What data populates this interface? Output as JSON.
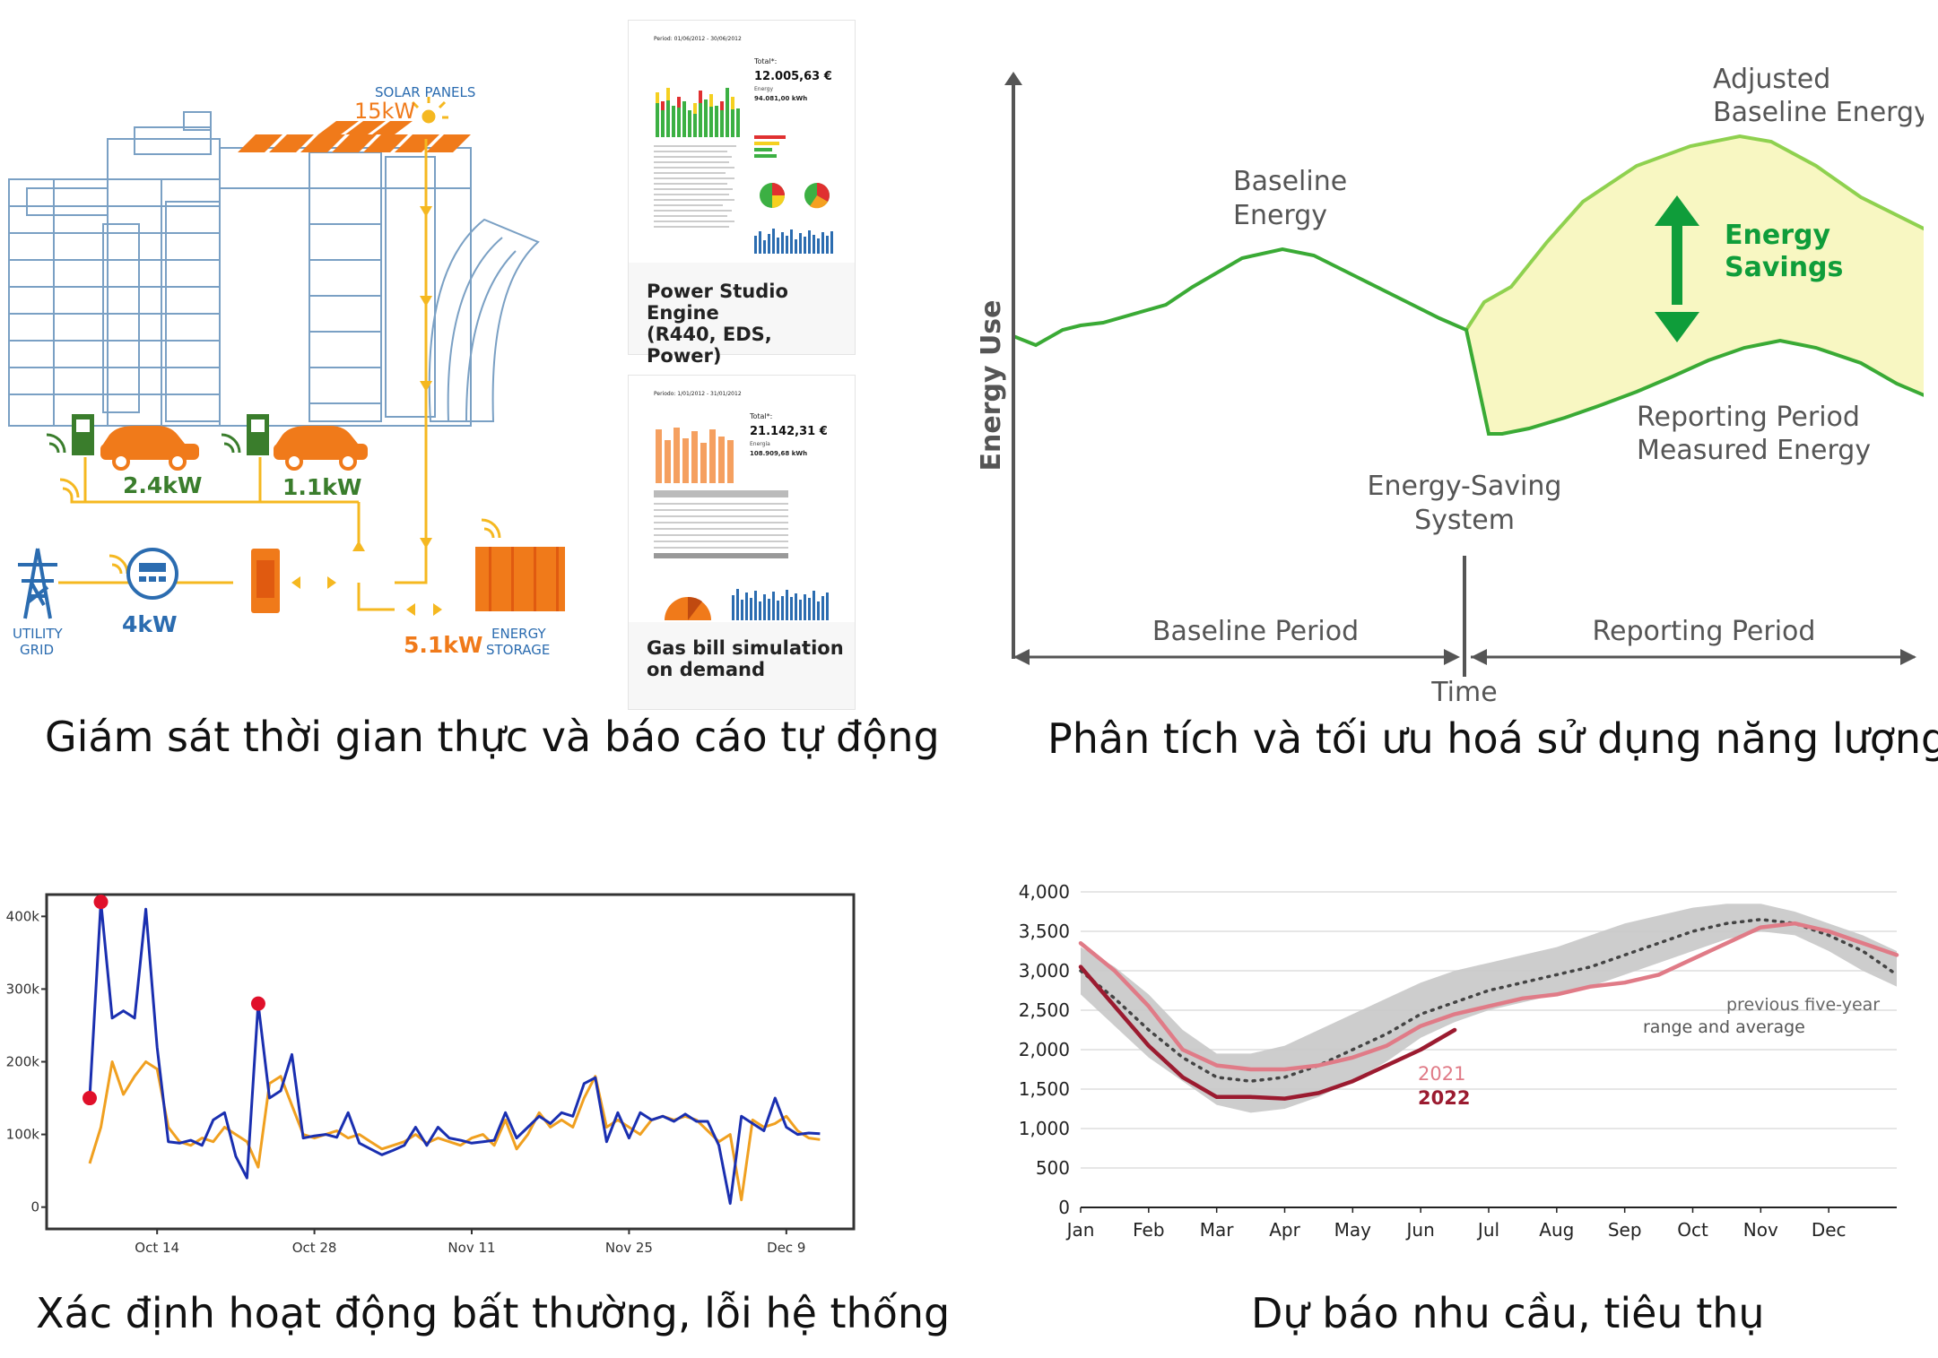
{
  "captions": {
    "top_left": "Giám sát thời gian thực và báo cáo tự động",
    "top_right": "Phân tích và tối ưu hoá sử dụng năng lượng",
    "bottom_left": "Xác định hoạt động bất thường, lỗi hệ thống",
    "bottom_right": "Dự báo nhu cầu, tiêu thụ"
  },
  "monitoring": {
    "solar_label": "SOLAR PANELS",
    "solar_value": "15kW",
    "ev1_value": "2.4kW",
    "ev2_value": "1.1kW",
    "grid_label_1": "UTILITY",
    "grid_label_2": "GRID",
    "meter_value": "4kW",
    "storage_value": "5.1kW",
    "storage_label_1": "ENERGY",
    "storage_label_2": "STORAGE",
    "colors": {
      "orange": "#f07a1a",
      "yellow": "#f5b820",
      "green": "#3a7d2c",
      "blue": "#2b6cb0",
      "line": "#7aa0c4"
    },
    "report1": {
      "period": "Period: 01/06/2012 - 30/06/2012",
      "total_label": "Total*:",
      "total": "12.005,63 €",
      "energy_label": "Energy",
      "energy": "94.081,00 kWh",
      "caption": "Power Studio Engine\n(R440, EDS,\nPower)"
    },
    "report2": {
      "period": "Periodo: 1/01/2012 - 31/01/2012",
      "total_label": "Total*:",
      "total": "21.142,31 €",
      "energy_label": "Energía",
      "energy": "108.909,68 kWh",
      "caption": "Gas bill simulation\non demand"
    }
  },
  "savings_diagram": {
    "ylabel": "Energy Use",
    "xlabel": "Time",
    "baseline_label": [
      "Baseline",
      "Energy"
    ],
    "adjusted_label": [
      "Adjusted",
      "Baseline Energy"
    ],
    "savings_label": [
      "Energy",
      "Savings"
    ],
    "reporting_measured_label": [
      "Reporting Period",
      "Measured Energy"
    ],
    "system_label": [
      "Energy-Saving",
      "System"
    ],
    "baseline_period": "Baseline Period",
    "reporting_period": "Reporting Period",
    "colors": {
      "line": "#3aaa35",
      "light_line": "#8fd14f",
      "fill": "#f8f7c2",
      "arrow": "#0f9d3a",
      "text": "#555"
    }
  },
  "chart_data": [
    {
      "type": "line",
      "title": "",
      "y_ticks": [
        "0",
        "100k",
        "200k",
        "300k",
        "400k"
      ],
      "x_ticks": [
        "Oct 14",
        "Oct 28",
        "Nov 11",
        "Nov 25",
        "Dec 9"
      ],
      "ylim": [
        -30000,
        430000
      ],
      "x_range_days": [
        0,
        68
      ],
      "grid": false,
      "series": [
        {
          "color": "#1a2fb0",
          "x": [
            0,
            1,
            2,
            3,
            4,
            5,
            6,
            7,
            8,
            9,
            10,
            11,
            12,
            13,
            14,
            15,
            16,
            17,
            18,
            19,
            20,
            21,
            22,
            23,
            24,
            25,
            26,
            27,
            28,
            29,
            30,
            31,
            32,
            33,
            34,
            35,
            36,
            37,
            38,
            39,
            40,
            41,
            42,
            43,
            44,
            45,
            46,
            47,
            48,
            49,
            50,
            51,
            52,
            53,
            54,
            55,
            56,
            57,
            58,
            59,
            60,
            61,
            62,
            63,
            64,
            65
          ],
          "values": [
            150000,
            420000,
            260000,
            270000,
            260000,
            410000,
            220000,
            90000,
            88000,
            92000,
            85000,
            120000,
            130000,
            70000,
            40000,
            280000,
            150000,
            160000,
            210000,
            95000,
            98000,
            100000,
            96000,
            130000,
            88000,
            80000,
            72000,
            78000,
            85000,
            110000,
            85000,
            110000,
            95000,
            92000,
            88000,
            90000,
            92000,
            130000,
            95000,
            110000,
            125000,
            115000,
            130000,
            125000,
            170000,
            178000,
            90000,
            130000,
            95000,
            130000,
            120000,
            125000,
            118000,
            128000,
            118000,
            118000,
            85000,
            5000,
            125000,
            115000,
            105000,
            150000,
            110000,
            100000,
            102000,
            101000
          ],
          "markers": [
            {
              "x": 0,
              "y": 150000
            },
            {
              "x": 1,
              "y": 420000
            },
            {
              "x": 15,
              "y": 280000
            }
          ]
        },
        {
          "color": "#f0a020",
          "x": [
            0,
            1,
            2,
            3,
            4,
            5,
            6,
            7,
            8,
            9,
            10,
            11,
            12,
            13,
            14,
            15,
            16,
            17,
            18,
            19,
            20,
            21,
            22,
            23,
            24,
            25,
            26,
            27,
            28,
            29,
            30,
            31,
            32,
            33,
            34,
            35,
            36,
            37,
            38,
            39,
            40,
            41,
            42,
            43,
            44,
            45,
            46,
            47,
            48,
            49,
            50,
            51,
            52,
            53,
            54,
            55,
            56,
            57,
            58,
            59,
            60,
            61,
            62,
            63,
            64,
            65
          ],
          "values": [
            60000,
            110000,
            200000,
            155000,
            180000,
            200000,
            190000,
            110000,
            90000,
            85000,
            95000,
            90000,
            110000,
            100000,
            90000,
            55000,
            170000,
            180000,
            140000,
            100000,
            95000,
            100000,
            105000,
            95000,
            100000,
            90000,
            80000,
            85000,
            90000,
            100000,
            88000,
            95000,
            90000,
            85000,
            95000,
            100000,
            85000,
            120000,
            80000,
            100000,
            130000,
            110000,
            120000,
            110000,
            150000,
            180000,
            110000,
            120000,
            110000,
            100000,
            120000,
            125000,
            120000,
            125000,
            120000,
            105000,
            90000,
            100000,
            10000,
            120000,
            110000,
            115000,
            125000,
            105000,
            95000,
            93000
          ]
        }
      ]
    },
    {
      "type": "area",
      "title": "",
      "x_ticks": [
        "Jan",
        "Feb",
        "Mar",
        "Apr",
        "May",
        "Jun",
        "Jul",
        "Aug",
        "Sep",
        "Oct",
        "Nov",
        "Dec"
      ],
      "y_ticks": [
        "0",
        "500",
        "1,000",
        "1,500",
        "2,000",
        "2,500",
        "3,000",
        "3,500",
        "4,000"
      ],
      "ylim": [
        0,
        4000
      ],
      "xlim": [
        0,
        12
      ],
      "grid": true,
      "annotation": [
        "previous five-year",
        "range and average"
      ],
      "range_band": {
        "x": [
          0,
          0.5,
          1,
          1.5,
          2,
          2.5,
          3,
          3.5,
          4,
          4.5,
          5,
          5.5,
          6,
          6.5,
          7,
          7.5,
          8,
          8.5,
          9,
          9.5,
          10,
          10.5,
          11,
          11.5,
          12
        ],
        "low": [
          2700,
          2300,
          1900,
          1600,
          1300,
          1200,
          1250,
          1400,
          1600,
          1850,
          2150,
          2350,
          2500,
          2600,
          2700,
          2800,
          2950,
          3100,
          3250,
          3400,
          3500,
          3450,
          3250,
          3000,
          2800
        ],
        "high": [
          3300,
          3050,
          2700,
          2250,
          1950,
          1950,
          2050,
          2250,
          2450,
          2650,
          2850,
          3000,
          3100,
          3200,
          3300,
          3450,
          3600,
          3700,
          3800,
          3850,
          3850,
          3750,
          3600,
          3450,
          3250
        ]
      },
      "series": [
        {
          "name": "previous five-year average",
          "style": "dotted",
          "color": "#444444",
          "x": [
            0,
            0.5,
            1,
            1.5,
            2,
            2.5,
            3,
            3.5,
            4,
            4.5,
            5,
            5.5,
            6,
            6.5,
            7,
            7.5,
            8,
            8.5,
            9,
            9.5,
            10,
            10.5,
            11,
            11.5,
            12
          ],
          "values": [
            3000,
            2650,
            2250,
            1900,
            1650,
            1600,
            1650,
            1800,
            2000,
            2200,
            2450,
            2600,
            2750,
            2850,
            2950,
            3050,
            3200,
            3350,
            3500,
            3600,
            3650,
            3600,
            3450,
            3250,
            2950
          ]
        },
        {
          "name": "2021",
          "color": "#e07b87",
          "x": [
            0,
            0.5,
            1,
            1.5,
            2,
            2.5,
            3,
            3.5,
            4,
            4.5,
            5,
            5.5,
            6,
            6.5,
            7,
            7.5,
            8,
            8.5,
            9,
            9.5,
            10,
            10.5,
            11,
            11.5,
            12
          ],
          "values": [
            3350,
            3000,
            2550,
            2000,
            1800,
            1750,
            1750,
            1800,
            1900,
            2050,
            2300,
            2450,
            2550,
            2650,
            2700,
            2800,
            2850,
            2950,
            3150,
            3350,
            3550,
            3600,
            3500,
            3350,
            3200
          ]
        },
        {
          "name": "2022",
          "color": "#9b1b30",
          "x": [
            0,
            0.5,
            1,
            1.5,
            2,
            2.5,
            3,
            3.5,
            4,
            4.5,
            5,
            5.5
          ],
          "values": [
            3050,
            2550,
            2050,
            1650,
            1400,
            1400,
            1380,
            1450,
            1600,
            1800,
            2000,
            2250
          ]
        }
      ]
    }
  ]
}
